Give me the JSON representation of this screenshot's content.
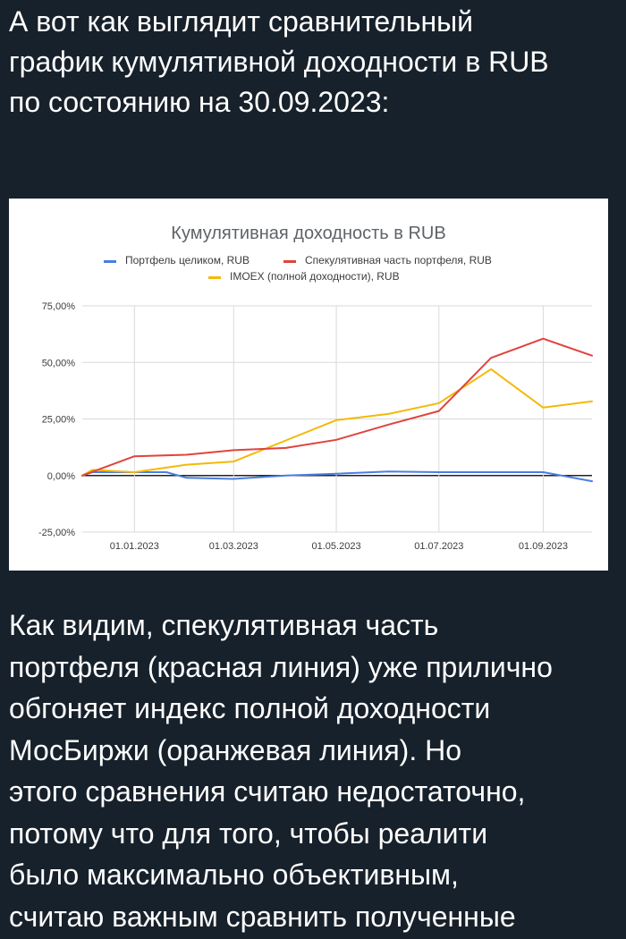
{
  "post": {
    "intro_lines": [
      "А вот как выглядит сравнительный",
      "график кумулятивной доходности в RUB",
      "по состоянию на 30.09.2023:"
    ],
    "body_lines": [
      "Как видим, спекулятивная часть",
      "портфеля (красная линия) уже прилично",
      "обгоняет индекс полной доходности",
      "МосБиржи (оранжевая линия). Но",
      "этого сравнения считаю недостаточно,",
      "потому что для того, чтобы реалити",
      "было максимально объективным,",
      "считаю важным сравнить полученные"
    ]
  },
  "colors": {
    "background": "#17212b",
    "text": "#ffffff",
    "chart_background": "#ffffff"
  },
  "chart_data": {
    "type": "line",
    "title": "Кумулятивная доходность в RUB",
    "legend_position": "top",
    "grid": true,
    "ylim": [
      -25,
      75
    ],
    "y_ticks": [
      -25,
      0,
      25,
      50,
      75
    ],
    "y_tick_labels": [
      "-25,00%",
      "0,00%",
      "25,00%",
      "50,00%",
      "75,00%"
    ],
    "x_range": [
      "2022-12-01",
      "2023-09-30"
    ],
    "x_ticks": [
      "2023-01-01",
      "2023-03-01",
      "2023-05-01",
      "2023-07-01",
      "2023-09-01"
    ],
    "x_tick_labels": [
      "01.01.2023",
      "01.03.2023",
      "01.05.2023",
      "01.07.2023",
      "01.09.2023"
    ],
    "series": [
      {
        "name": "Портфель целиком, RUB",
        "color": "#4a7ee0",
        "points": [
          [
            "2022-12-01",
            0
          ],
          [
            "2022-12-07",
            1.5
          ],
          [
            "2023-01-01",
            1.5
          ],
          [
            "2023-01-20",
            1.5
          ],
          [
            "2023-02-01",
            -1
          ],
          [
            "2023-03-01",
            -1.5
          ],
          [
            "2023-04-01",
            0
          ],
          [
            "2023-05-01",
            0.8
          ],
          [
            "2023-06-01",
            1.8
          ],
          [
            "2023-07-01",
            1.5
          ],
          [
            "2023-08-01",
            1.5
          ],
          [
            "2023-09-01",
            1.5
          ],
          [
            "2023-09-30",
            -2.5
          ]
        ]
      },
      {
        "name": "Спекулятивная часть портфеля, RUB",
        "color": "#e0443c",
        "points": [
          [
            "2022-12-01",
            0
          ],
          [
            "2023-01-01",
            8.5
          ],
          [
            "2023-02-01",
            9.2
          ],
          [
            "2023-03-01",
            11.2
          ],
          [
            "2023-04-01",
            12.2
          ],
          [
            "2023-05-01",
            15.8
          ],
          [
            "2023-06-01",
            22.5
          ],
          [
            "2023-07-01",
            28.5
          ],
          [
            "2023-08-01",
            52
          ],
          [
            "2023-09-01",
            60.5
          ],
          [
            "2023-09-30",
            53
          ]
        ]
      },
      {
        "name": "IMOEX (полной доходности), RUB",
        "color": "#f4b90a",
        "points": [
          [
            "2022-12-01",
            0
          ],
          [
            "2022-12-07",
            2.5
          ],
          [
            "2023-01-01",
            1.5
          ],
          [
            "2023-02-01",
            4.8
          ],
          [
            "2023-03-01",
            6.2
          ],
          [
            "2023-04-01",
            15.5
          ],
          [
            "2023-05-01",
            24.5
          ],
          [
            "2023-06-01",
            27.2
          ],
          [
            "2023-07-01",
            32
          ],
          [
            "2023-08-01",
            47
          ],
          [
            "2023-09-01",
            30
          ],
          [
            "2023-09-30",
            32.8
          ]
        ]
      }
    ]
  }
}
